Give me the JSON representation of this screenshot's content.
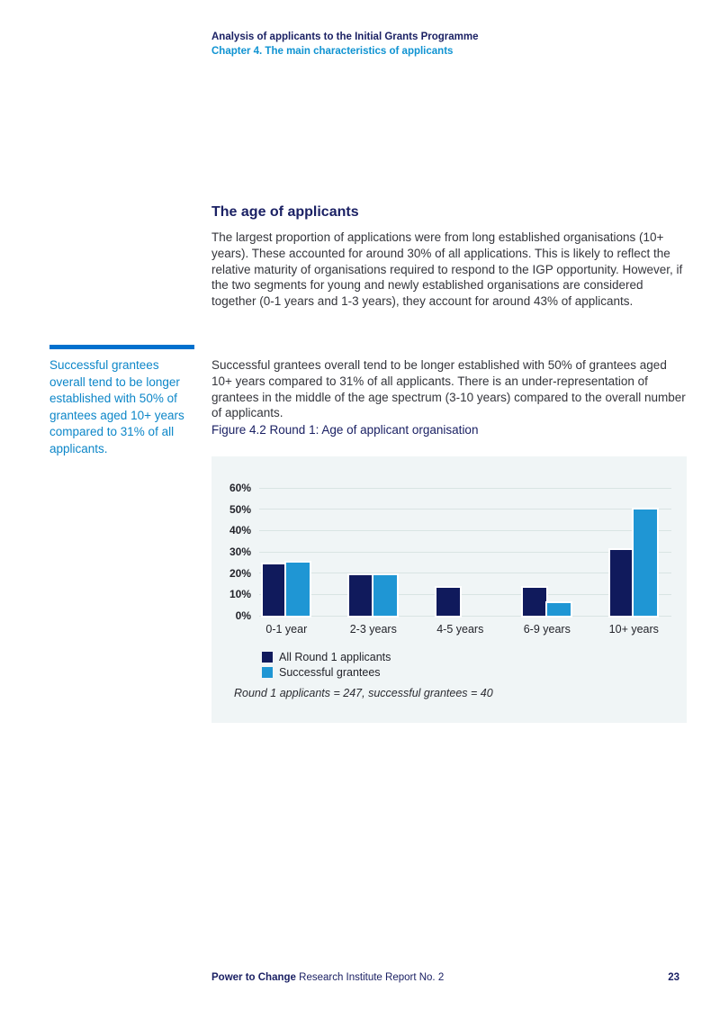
{
  "header": {
    "report_title": "Analysis of applicants to the Initial Grants Programme",
    "chapter_subtitle": "Chapter 4. The main characteristics of applicants"
  },
  "section": {
    "heading": "The age of applicants",
    "paragraph1": "The largest proportion of applications were from long established organisations (10+ years). These accounted for around 30% of all applications. This is likely to reflect the relative maturity of organisations required to respond to the IGP opportunity. However, if the two segments for young and newly established organisations are considered together (0-1 years and 1-3 years), they account for around 43% of applicants.",
    "paragraph2": "Successful grantees overall tend to be longer established with 50% of grantees aged 10+ years compared to 31% of all applicants. There is an under-representation of grantees in the middle of the age spectrum (3-10 years) compared to the overall number of applicants."
  },
  "pull_quote": {
    "text": "Successful grantees overall tend to be longer established with 50% of grantees aged 10+ years compared to 31% of all applicants."
  },
  "figure": {
    "caption": "Figure 4.2 Round 1: Age of applicant organisation"
  },
  "chart_data": {
    "type": "bar",
    "title": "Figure 4.2 Round 1: Age of applicant organisation",
    "categories": [
      "0-1 year",
      "2-3 years",
      "4-5 years",
      "6-9 years",
      "10+ years"
    ],
    "series": [
      {
        "name": "All Round 1 applicants",
        "color": "#101a5c",
        "values": [
          24,
          19,
          13,
          13,
          31
        ]
      },
      {
        "name": "Successful grantees",
        "color": "#1f96d4",
        "values": [
          25,
          19,
          0,
          6,
          50
        ]
      }
    ],
    "xlabel": "",
    "ylabel": "",
    "ylim": [
      0,
      60
    ],
    "y_ticks": [
      "0%",
      "10%",
      "20%",
      "30%",
      "40%",
      "50%",
      "60%"
    ],
    "grid": true,
    "legend_position": "bottom-left",
    "note": "Round 1 applicants = 247, successful grantees = 40"
  },
  "colors": {
    "navy_text": "#1b2164",
    "chapter_blue": "#0f93d2",
    "pull_quote_blue": "#0c86c8",
    "pull_quote_rule": "#0071ce",
    "dark_series": "#101a5c",
    "light_series": "#1f96d4",
    "panel_background": "#f0f5f6",
    "gridline": "#d9e4e3"
  },
  "footer": {
    "brand": "Power to Change",
    "title_rest": " Research Institute Report No. 2",
    "page_number": "23"
  }
}
